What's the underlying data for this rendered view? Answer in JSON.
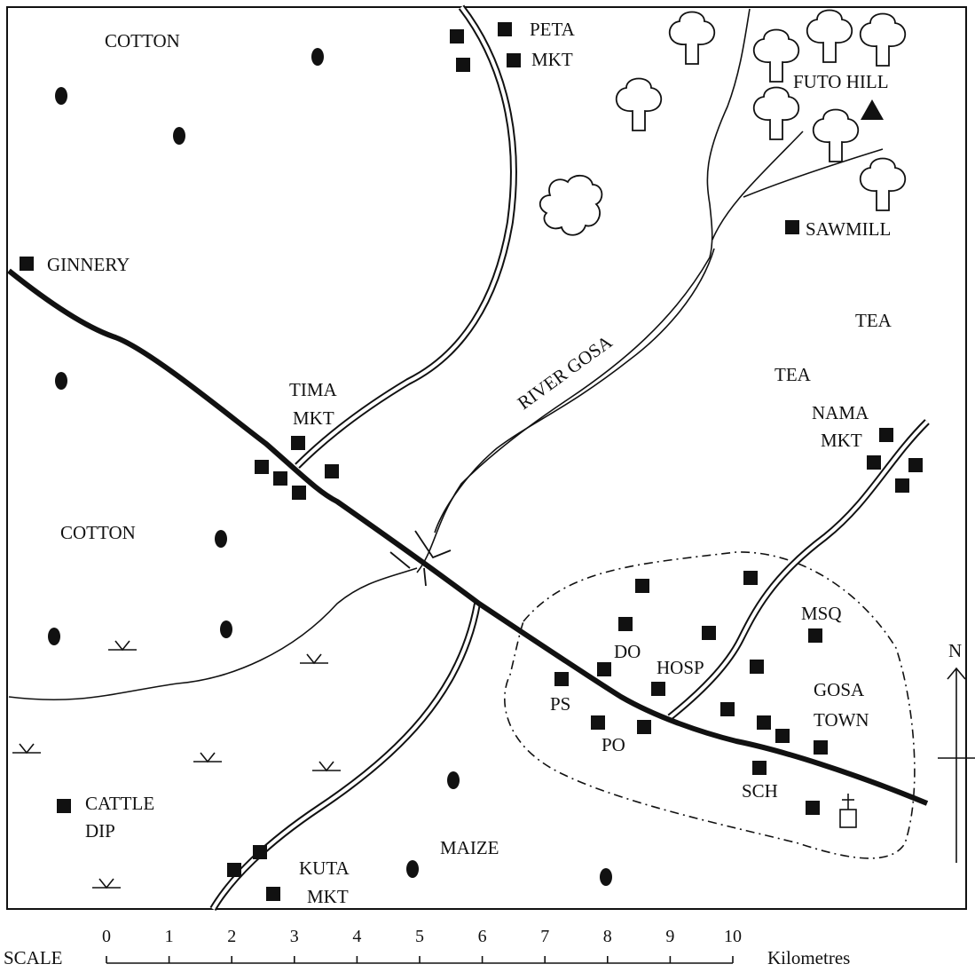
{
  "map": {
    "land_use": {
      "cotton_north": "COTTON",
      "cotton_west": "COTTON",
      "maize": "MAIZE",
      "tea_1": "TEA",
      "tea_2": "TEA"
    },
    "river": {
      "name": "RIVER GOSA"
    },
    "relief": {
      "hill": "FUTO HILL"
    },
    "settlements": {
      "peta_1": "PETA",
      "peta_2": "MKT",
      "tima_1": "TIMA",
      "tima_2": "MKT",
      "nama_1": "NAMA",
      "nama_2": "MKT",
      "kuta_1": "KUTA",
      "kuta_2": "MKT",
      "gosa_1": "GOSA",
      "gosa_2": "TOWN"
    },
    "facilities": {
      "ginnery": "GINNERY",
      "sawmill": "SAWMILL",
      "cattle_dip_1": "CATTLE",
      "cattle_dip_2": "DIP"
    },
    "town_features": {
      "do": "DO",
      "hosp": "HOSP",
      "msq": "MSQ",
      "ps": "PS",
      "po": "PO",
      "sch": "SCH"
    },
    "north_label": "N",
    "scale": {
      "label": "SCALE",
      "unit": "Kilometres",
      "ticks": [
        "0",
        "1",
        "2",
        "3",
        "4",
        "5",
        "6",
        "7",
        "8",
        "9",
        "10"
      ]
    }
  }
}
